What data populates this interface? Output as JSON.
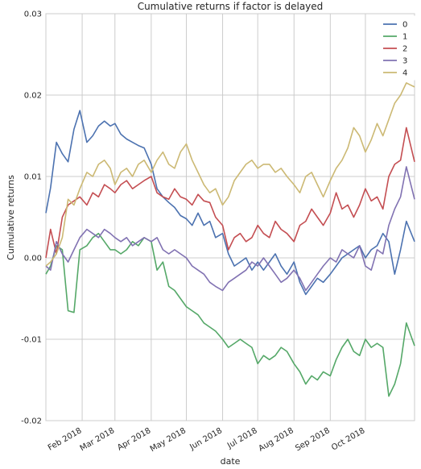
{
  "chart_data": {
    "type": "line",
    "title": "Cumulative returns if factor is delayed",
    "xlabel": "date",
    "ylabel": "Cumulative returns",
    "x_range": [
      "2018-01-01",
      "2018-11-12"
    ],
    "ylim": [
      -0.02,
      0.03
    ],
    "yticks": [
      -0.02,
      -0.01,
      0.0,
      0.01,
      0.02,
      0.03
    ],
    "ytick_labels": [
      "-0.02",
      "-0.01",
      "0.00",
      "0.01",
      "0.02",
      "0.03"
    ],
    "xticks": [
      "2018-02-01",
      "2018-03-01",
      "2018-04-01",
      "2018-05-01",
      "2018-06-01",
      "2018-07-01",
      "2018-08-01",
      "2018-09-01",
      "2018-10-01"
    ],
    "xtick_labels": [
      "Feb 2018",
      "Mar 2018",
      "Apr 2018",
      "May 2018",
      "Jun 2018",
      "Jul 2018",
      "Aug 2018",
      "Sep 2018",
      "Oct 2018"
    ],
    "grid": true,
    "legend_position": "top-right",
    "colors": [
      "#4c72b0",
      "#55a868",
      "#c44e52",
      "#8172b2",
      "#ccb974"
    ],
    "series": [
      {
        "name": "0",
        "x": [
          "2018-01-01",
          "2018-01-05",
          "2018-01-10",
          "2018-01-15",
          "2018-01-20",
          "2018-01-25",
          "2018-01-30",
          "2018-02-05",
          "2018-02-10",
          "2018-02-15",
          "2018-02-20",
          "2018-02-25",
          "2018-03-01",
          "2018-03-06",
          "2018-03-11",
          "2018-03-16",
          "2018-03-21",
          "2018-03-26",
          "2018-04-01",
          "2018-04-06",
          "2018-04-11",
          "2018-04-16",
          "2018-04-21",
          "2018-04-26",
          "2018-05-01",
          "2018-05-06",
          "2018-05-11",
          "2018-05-16",
          "2018-05-21",
          "2018-05-26",
          "2018-06-01",
          "2018-06-06",
          "2018-06-11",
          "2018-06-16",
          "2018-06-21",
          "2018-06-26",
          "2018-07-01",
          "2018-07-06",
          "2018-07-11",
          "2018-07-16",
          "2018-07-21",
          "2018-07-26",
          "2018-08-01",
          "2018-08-06",
          "2018-08-11",
          "2018-08-16",
          "2018-08-21",
          "2018-08-26",
          "2018-09-01",
          "2018-09-06",
          "2018-09-11",
          "2018-09-16",
          "2018-09-21",
          "2018-09-26",
          "2018-10-01",
          "2018-10-06",
          "2018-10-11",
          "2018-10-16",
          "2018-10-21",
          "2018-10-26",
          "2018-10-31",
          "2018-11-05",
          "2018-11-12"
        ],
        "values": [
          0.0055,
          0.0086,
          0.0142,
          0.0128,
          0.0118,
          0.0158,
          0.0181,
          0.0142,
          0.015,
          0.0162,
          0.0168,
          0.0162,
          0.0165,
          0.0152,
          0.0146,
          0.0142,
          0.0138,
          0.0135,
          0.0115,
          0.0085,
          0.0075,
          0.0068,
          0.0062,
          0.0052,
          0.0048,
          0.004,
          0.0055,
          0.004,
          0.0045,
          0.0025,
          0.003,
          0.0005,
          -0.001,
          -0.0005,
          0.0,
          -0.0015,
          -0.0005,
          -0.0015,
          -0.0005,
          0.0005,
          -0.001,
          -0.002,
          -0.0005,
          -0.003,
          -0.0045,
          -0.0035,
          -0.0025,
          -0.003,
          -0.002,
          -0.001,
          0.0,
          0.0005,
          0.001,
          0.0015,
          0.0,
          0.001,
          0.0015,
          0.003,
          0.002,
          -0.002,
          0.001,
          0.0045,
          0.002
        ]
      },
      {
        "name": "1",
        "x": [
          "2018-01-01",
          "2018-01-05",
          "2018-01-10",
          "2018-01-15",
          "2018-01-20",
          "2018-01-25",
          "2018-01-30",
          "2018-02-05",
          "2018-02-10",
          "2018-02-15",
          "2018-02-20",
          "2018-02-25",
          "2018-03-01",
          "2018-03-06",
          "2018-03-11",
          "2018-03-16",
          "2018-03-21",
          "2018-03-26",
          "2018-04-01",
          "2018-04-06",
          "2018-04-11",
          "2018-04-16",
          "2018-04-21",
          "2018-04-26",
          "2018-05-01",
          "2018-05-06",
          "2018-05-11",
          "2018-05-16",
          "2018-05-21",
          "2018-05-26",
          "2018-06-01",
          "2018-06-06",
          "2018-06-11",
          "2018-06-16",
          "2018-06-21",
          "2018-06-26",
          "2018-07-01",
          "2018-07-06",
          "2018-07-11",
          "2018-07-16",
          "2018-07-21",
          "2018-07-26",
          "2018-08-01",
          "2018-08-06",
          "2018-08-11",
          "2018-08-16",
          "2018-08-21",
          "2018-08-26",
          "2018-09-01",
          "2018-09-06",
          "2018-09-11",
          "2018-09-16",
          "2018-09-21",
          "2018-09-26",
          "2018-10-01",
          "2018-10-06",
          "2018-10-11",
          "2018-10-16",
          "2018-10-21",
          "2018-10-26",
          "2018-10-31",
          "2018-11-05",
          "2018-11-12"
        ],
        "values": [
          -0.002,
          -0.001,
          0.0015,
          0.001,
          -0.0065,
          -0.0067,
          0.001,
          0.0015,
          0.0025,
          0.003,
          0.002,
          0.001,
          0.001,
          0.0005,
          0.001,
          0.002,
          0.0015,
          0.0025,
          0.002,
          -0.0015,
          -0.0005,
          -0.0035,
          -0.004,
          -0.005,
          -0.006,
          -0.0065,
          -0.007,
          -0.008,
          -0.0085,
          -0.009,
          -0.01,
          -0.011,
          -0.0105,
          -0.01,
          -0.0105,
          -0.011,
          -0.013,
          -0.012,
          -0.0125,
          -0.012,
          -0.011,
          -0.0115,
          -0.013,
          -0.014,
          -0.0155,
          -0.0145,
          -0.015,
          -0.014,
          -0.0145,
          -0.0125,
          -0.011,
          -0.01,
          -0.0115,
          -0.012,
          -0.01,
          -0.011,
          -0.0105,
          -0.011,
          -0.017,
          -0.0155,
          -0.013,
          -0.008,
          -0.0108
        ]
      },
      {
        "name": "2",
        "x": [
          "2018-01-01",
          "2018-01-05",
          "2018-01-10",
          "2018-01-15",
          "2018-01-20",
          "2018-01-25",
          "2018-01-30",
          "2018-02-05",
          "2018-02-10",
          "2018-02-15",
          "2018-02-20",
          "2018-02-25",
          "2018-03-01",
          "2018-03-06",
          "2018-03-11",
          "2018-03-16",
          "2018-03-21",
          "2018-03-26",
          "2018-04-01",
          "2018-04-06",
          "2018-04-11",
          "2018-04-16",
          "2018-04-21",
          "2018-04-26",
          "2018-05-01",
          "2018-05-06",
          "2018-05-11",
          "2018-05-16",
          "2018-05-21",
          "2018-05-26",
          "2018-06-01",
          "2018-06-06",
          "2018-06-11",
          "2018-06-16",
          "2018-06-21",
          "2018-06-26",
          "2018-07-01",
          "2018-07-06",
          "2018-07-11",
          "2018-07-16",
          "2018-07-21",
          "2018-07-26",
          "2018-08-01",
          "2018-08-06",
          "2018-08-11",
          "2018-08-16",
          "2018-08-21",
          "2018-08-26",
          "2018-09-01",
          "2018-09-06",
          "2018-09-11",
          "2018-09-16",
          "2018-09-21",
          "2018-09-26",
          "2018-10-01",
          "2018-10-06",
          "2018-10-11",
          "2018-10-16",
          "2018-10-21",
          "2018-10-26",
          "2018-10-31",
          "2018-11-05",
          "2018-11-12"
        ],
        "values": [
          0.0,
          0.0035,
          0.0005,
          0.005,
          0.0065,
          0.007,
          0.0075,
          0.0065,
          0.008,
          0.0075,
          0.009,
          0.0085,
          0.008,
          0.009,
          0.0095,
          0.0085,
          0.009,
          0.0095,
          0.01,
          0.008,
          0.0075,
          0.0072,
          0.0085,
          0.0075,
          0.0072,
          0.0065,
          0.0078,
          0.007,
          0.0068,
          0.005,
          0.004,
          0.001,
          0.0025,
          0.003,
          0.002,
          0.0025,
          0.004,
          0.003,
          0.0025,
          0.0045,
          0.0035,
          0.003,
          0.002,
          0.004,
          0.0045,
          0.006,
          0.005,
          0.004,
          0.0055,
          0.008,
          0.006,
          0.0065,
          0.005,
          0.0065,
          0.0085,
          0.007,
          0.0075,
          0.006,
          0.01,
          0.0115,
          0.012,
          0.016,
          0.0118
        ]
      },
      {
        "name": "3",
        "x": [
          "2018-01-01",
          "2018-01-05",
          "2018-01-10",
          "2018-01-15",
          "2018-01-20",
          "2018-01-25",
          "2018-01-30",
          "2018-02-05",
          "2018-02-10",
          "2018-02-15",
          "2018-02-20",
          "2018-02-25",
          "2018-03-01",
          "2018-03-06",
          "2018-03-11",
          "2018-03-16",
          "2018-03-21",
          "2018-03-26",
          "2018-04-01",
          "2018-04-06",
          "2018-04-11",
          "2018-04-16",
          "2018-04-21",
          "2018-04-26",
          "2018-05-01",
          "2018-05-06",
          "2018-05-11",
          "2018-05-16",
          "2018-05-21",
          "2018-05-26",
          "2018-06-01",
          "2018-06-06",
          "2018-06-11",
          "2018-06-16",
          "2018-06-21",
          "2018-06-26",
          "2018-07-01",
          "2018-07-06",
          "2018-07-11",
          "2018-07-16",
          "2018-07-21",
          "2018-07-26",
          "2018-08-01",
          "2018-08-06",
          "2018-08-11",
          "2018-08-16",
          "2018-08-21",
          "2018-08-26",
          "2018-09-01",
          "2018-09-06",
          "2018-09-11",
          "2018-09-16",
          "2018-09-21",
          "2018-09-26",
          "2018-10-01",
          "2018-10-06",
          "2018-10-11",
          "2018-10-16",
          "2018-10-21",
          "2018-10-26",
          "2018-10-31",
          "2018-11-05",
          "2018-11-12"
        ],
        "values": [
          -0.001,
          -0.0015,
          0.002,
          0.0005,
          -0.0005,
          0.001,
          0.0025,
          0.0035,
          0.003,
          0.0025,
          0.0035,
          0.003,
          0.0025,
          0.002,
          0.0025,
          0.0015,
          0.002,
          0.0025,
          0.002,
          0.0025,
          0.001,
          0.0005,
          0.001,
          0.0005,
          0.0,
          -0.001,
          -0.0015,
          -0.002,
          -0.003,
          -0.0035,
          -0.004,
          -0.003,
          -0.0025,
          -0.002,
          -0.0015,
          -0.0005,
          -0.001,
          0.0,
          -0.001,
          -0.002,
          -0.003,
          -0.0025,
          -0.0015,
          -0.0025,
          -0.004,
          -0.003,
          -0.002,
          -0.001,
          0.0,
          -0.0005,
          0.001,
          0.0005,
          0.0,
          0.0015,
          -0.001,
          -0.0015,
          0.001,
          0.0005,
          0.004,
          0.006,
          0.0075,
          0.0112,
          0.0072
        ]
      },
      {
        "name": "4",
        "x": [
          "2018-01-01",
          "2018-01-05",
          "2018-01-10",
          "2018-01-15",
          "2018-01-20",
          "2018-01-25",
          "2018-01-30",
          "2018-02-05",
          "2018-02-10",
          "2018-02-15",
          "2018-02-20",
          "2018-02-25",
          "2018-03-01",
          "2018-03-06",
          "2018-03-11",
          "2018-03-16",
          "2018-03-21",
          "2018-03-26",
          "2018-04-01",
          "2018-04-06",
          "2018-04-11",
          "2018-04-16",
          "2018-04-21",
          "2018-04-26",
          "2018-05-01",
          "2018-05-06",
          "2018-05-11",
          "2018-05-16",
          "2018-05-21",
          "2018-05-26",
          "2018-06-01",
          "2018-06-06",
          "2018-06-11",
          "2018-06-16",
          "2018-06-21",
          "2018-06-26",
          "2018-07-01",
          "2018-07-06",
          "2018-07-11",
          "2018-07-16",
          "2018-07-21",
          "2018-07-26",
          "2018-08-01",
          "2018-08-06",
          "2018-08-11",
          "2018-08-16",
          "2018-08-21",
          "2018-08-26",
          "2018-09-01",
          "2018-09-06",
          "2018-09-11",
          "2018-09-16",
          "2018-09-21",
          "2018-09-26",
          "2018-10-01",
          "2018-10-06",
          "2018-10-11",
          "2018-10-16",
          "2018-10-21",
          "2018-10-26",
          "2018-10-31",
          "2018-11-05",
          "2018-11-12"
        ],
        "values": [
          -0.001,
          -0.0005,
          0.0005,
          0.0025,
          0.0072,
          0.0065,
          0.0085,
          0.0105,
          0.01,
          0.0115,
          0.012,
          0.011,
          0.009,
          0.0105,
          0.011,
          0.01,
          0.0115,
          0.012,
          0.0105,
          0.012,
          0.013,
          0.0115,
          0.011,
          0.013,
          0.014,
          0.012,
          0.0105,
          0.009,
          0.008,
          0.0085,
          0.0065,
          0.0075,
          0.0095,
          0.0105,
          0.0115,
          0.012,
          0.011,
          0.0115,
          0.0115,
          0.0105,
          0.011,
          0.01,
          0.009,
          0.008,
          0.01,
          0.0105,
          0.009,
          0.0075,
          0.0095,
          0.011,
          0.012,
          0.0135,
          0.016,
          0.015,
          0.013,
          0.0145,
          0.0165,
          0.015,
          0.017,
          0.019,
          0.02,
          0.0215,
          0.021
        ]
      }
    ]
  }
}
